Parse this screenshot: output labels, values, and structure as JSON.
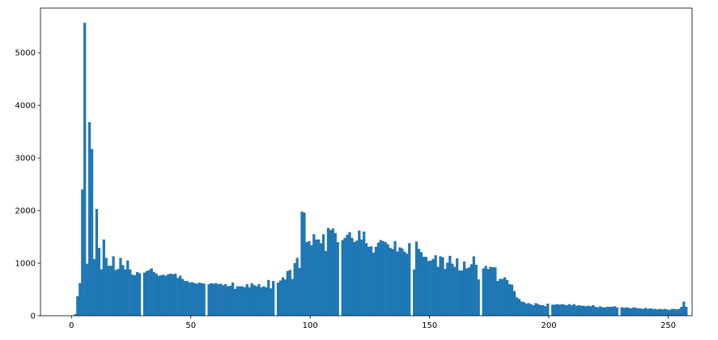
{
  "chart_data": {
    "type": "bar",
    "title": "",
    "xlabel": "",
    "ylabel": "",
    "xlim": [
      -13,
      260
    ],
    "ylim": [
      0,
      5850
    ],
    "x_ticks": [
      0,
      50,
      100,
      150,
      200,
      250
    ],
    "y_ticks": [
      0,
      1000,
      2000,
      3000,
      4000,
      5000
    ],
    "x_tick_labels": [
      "0",
      "50",
      "100",
      "150",
      "200",
      "250"
    ],
    "y_tick_labels": [
      "0",
      "1000",
      "2000",
      "3000",
      "4000",
      "5000"
    ],
    "bar_color": "#1f77b4",
    "bin_width": 1,
    "bins_start": 0,
    "values": [
      0,
      30,
      370,
      620,
      2400,
      5570,
      990,
      3680,
      3170,
      1080,
      2030,
      1290,
      880,
      1450,
      1100,
      950,
      950,
      1130,
      870,
      890,
      1100,
      960,
      880,
      1050,
      880,
      780,
      770,
      830,
      810,
      0,
      820,
      850,
      870,
      900,
      830,
      800,
      760,
      770,
      780,
      760,
      790,
      800,
      790,
      800,
      720,
      760,
      700,
      660,
      660,
      630,
      640,
      620,
      610,
      630,
      620,
      610,
      0,
      600,
      620,
      610,
      620,
      600,
      610,
      580,
      600,
      560,
      570,
      630,
      510,
      560,
      560,
      560,
      540,
      600,
      540,
      620,
      580,
      560,
      600,
      540,
      560,
      540,
      680,
      520,
      660,
      0,
      630,
      670,
      730,
      690,
      850,
      870,
      700,
      1000,
      1100,
      910,
      1980,
      1960,
      1400,
      1420,
      1340,
      1550,
      1450,
      1450,
      1380,
      1550,
      1230,
      1670,
      1630,
      1660,
      1570,
      1400,
      0,
      1440,
      1480,
      1540,
      1590,
      1480,
      1400,
      1430,
      1620,
      1450,
      1600,
      1380,
      1310,
      1320,
      1200,
      1310,
      1390,
      1440,
      1420,
      1400,
      1360,
      1290,
      1270,
      1420,
      1220,
      1300,
      1280,
      1220,
      1180,
      1380,
      0,
      880,
      1410,
      1270,
      1210,
      1120,
      1120,
      1040,
      1050,
      1080,
      1150,
      930,
      1130,
      1110,
      890,
      1010,
      1140,
      990,
      930,
      1090,
      860,
      860,
      1030,
      900,
      920,
      980,
      1130,
      970,
      690,
      0,
      900,
      950,
      890,
      930,
      920,
      920,
      660,
      700,
      700,
      730,
      680,
      600,
      590,
      470,
      350,
      320,
      270,
      260,
      230,
      240,
      220,
      200,
      240,
      220,
      200,
      200,
      180,
      230,
      0,
      210,
      210,
      220,
      210,
      220,
      210,
      200,
      220,
      200,
      220,
      190,
      200,
      190,
      190,
      180,
      190,
      180,
      200,
      170,
      160,
      180,
      160,
      160,
      170,
      170,
      170,
      180,
      160,
      0,
      160,
      150,
      160,
      150,
      140,
      160,
      150,
      140,
      140,
      130,
      150,
      130,
      140,
      130,
      130,
      120,
      130,
      120,
      130,
      120,
      110,
      130,
      130,
      120,
      130,
      170,
      270,
      170
    ]
  }
}
